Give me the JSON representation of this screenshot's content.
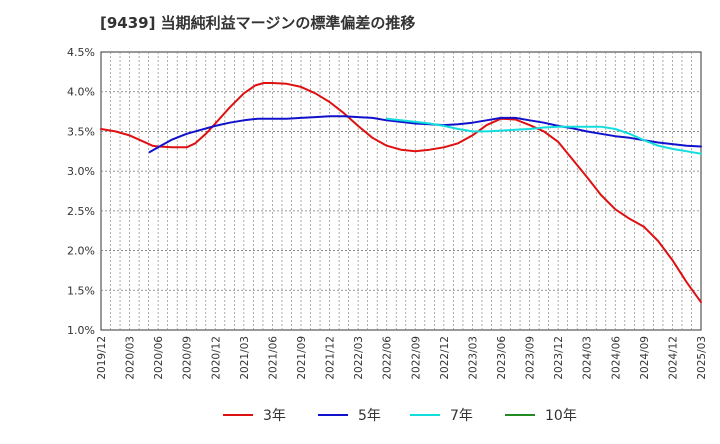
{
  "title": "[9439]  当期純利益マージンの標準偏差の推移",
  "chart_data": {
    "type": "line",
    "y_ticks": [
      "4.5%",
      "4.0%",
      "3.5%",
      "3.0%",
      "2.5%",
      "2.0%",
      "1.5%",
      "1.0%"
    ],
    "y_tick_values": [
      4.5,
      4.0,
      3.5,
      3.0,
      2.5,
      2.0,
      1.5,
      1.0
    ],
    "ylim": [
      1.0,
      4.5
    ],
    "x_ticks": [
      "2019/12",
      "2020/03",
      "2020/06",
      "2020/09",
      "2020/12",
      "2021/03",
      "2021/06",
      "2021/09",
      "2021/12",
      "2022/03",
      "2022/06",
      "2022/09",
      "2022/12",
      "2023/03",
      "2023/06",
      "2023/09",
      "2023/12",
      "2024/03",
      "2024/06",
      "2024/09",
      "2024/12",
      "2025/03"
    ],
    "grid": true,
    "legend_position": "bottom",
    "series": [
      {
        "name": "3年",
        "color": "#dd1111",
        "points": [
          [
            0,
            3.53
          ],
          [
            0.5,
            3.5
          ],
          [
            1,
            3.45
          ],
          [
            1.5,
            3.37
          ],
          [
            1.8,
            3.32
          ],
          [
            2,
            3.31
          ],
          [
            2.5,
            3.3
          ],
          [
            3,
            3.3
          ],
          [
            3.3,
            3.35
          ],
          [
            3.7,
            3.48
          ],
          [
            4,
            3.6
          ],
          [
            4.5,
            3.8
          ],
          [
            5,
            3.98
          ],
          [
            5.4,
            4.08
          ],
          [
            5.7,
            4.11
          ],
          [
            6,
            4.11
          ],
          [
            6.5,
            4.1
          ],
          [
            7,
            4.06
          ],
          [
            7.5,
            3.98
          ],
          [
            8,
            3.87
          ],
          [
            8.5,
            3.73
          ],
          [
            9,
            3.57
          ],
          [
            9.5,
            3.42
          ],
          [
            10,
            3.32
          ],
          [
            10.5,
            3.27
          ],
          [
            11,
            3.25
          ],
          [
            11.5,
            3.27
          ],
          [
            12,
            3.3
          ],
          [
            12.5,
            3.35
          ],
          [
            13,
            3.45
          ],
          [
            13.5,
            3.58
          ],
          [
            14,
            3.66
          ],
          [
            14.5,
            3.65
          ],
          [
            15,
            3.58
          ],
          [
            15.5,
            3.5
          ],
          [
            16,
            3.37
          ],
          [
            16.5,
            3.15
          ],
          [
            17,
            2.93
          ],
          [
            17.5,
            2.7
          ],
          [
            18,
            2.52
          ],
          [
            18.5,
            2.4
          ],
          [
            19,
            2.3
          ],
          [
            19.5,
            2.12
          ],
          [
            20,
            1.88
          ],
          [
            20.5,
            1.6
          ],
          [
            21,
            1.35
          ]
        ]
      },
      {
        "name": "5年",
        "color": "#1111cc",
        "points": [
          [
            1.7,
            3.24
          ],
          [
            2,
            3.3
          ],
          [
            2.5,
            3.4
          ],
          [
            3,
            3.47
          ],
          [
            3.5,
            3.52
          ],
          [
            4,
            3.57
          ],
          [
            4.5,
            3.61
          ],
          [
            5,
            3.64
          ],
          [
            5.5,
            3.66
          ],
          [
            6,
            3.66
          ],
          [
            6.5,
            3.66
          ],
          [
            7,
            3.67
          ],
          [
            7.5,
            3.68
          ],
          [
            8,
            3.69
          ],
          [
            8.5,
            3.69
          ],
          [
            9,
            3.68
          ],
          [
            9.5,
            3.67
          ],
          [
            10,
            3.64
          ],
          [
            10.5,
            3.62
          ],
          [
            11,
            3.6
          ],
          [
            11.5,
            3.59
          ],
          [
            12,
            3.58
          ],
          [
            12.5,
            3.59
          ],
          [
            13,
            3.61
          ],
          [
            13.5,
            3.64
          ],
          [
            14,
            3.67
          ],
          [
            14.5,
            3.67
          ],
          [
            15,
            3.64
          ],
          [
            15.5,
            3.61
          ],
          [
            16,
            3.57
          ],
          [
            16.5,
            3.54
          ],
          [
            17,
            3.5
          ],
          [
            17.5,
            3.47
          ],
          [
            18,
            3.44
          ],
          [
            18.5,
            3.42
          ],
          [
            19,
            3.39
          ],
          [
            19.5,
            3.36
          ],
          [
            20,
            3.34
          ],
          [
            20.5,
            3.32
          ],
          [
            21,
            3.31
          ]
        ]
      },
      {
        "name": "7年",
        "color": "#11dddd",
        "points": [
          [
            10,
            3.66
          ],
          [
            10.5,
            3.64
          ],
          [
            11,
            3.62
          ],
          [
            11.5,
            3.6
          ],
          [
            12,
            3.57
          ],
          [
            12.5,
            3.53
          ],
          [
            13,
            3.5
          ],
          [
            13.5,
            3.5
          ],
          [
            14,
            3.51
          ],
          [
            14.5,
            3.52
          ],
          [
            15,
            3.53
          ],
          [
            15.5,
            3.55
          ],
          [
            16,
            3.56
          ],
          [
            16.5,
            3.56
          ],
          [
            17,
            3.56
          ],
          [
            17.5,
            3.56
          ],
          [
            18,
            3.53
          ],
          [
            18.5,
            3.47
          ],
          [
            19,
            3.39
          ],
          [
            19.5,
            3.32
          ],
          [
            20,
            3.28
          ],
          [
            20.5,
            3.25
          ],
          [
            21,
            3.22
          ]
        ]
      },
      {
        "name": "10年",
        "color": "#228b22",
        "points": []
      }
    ]
  }
}
